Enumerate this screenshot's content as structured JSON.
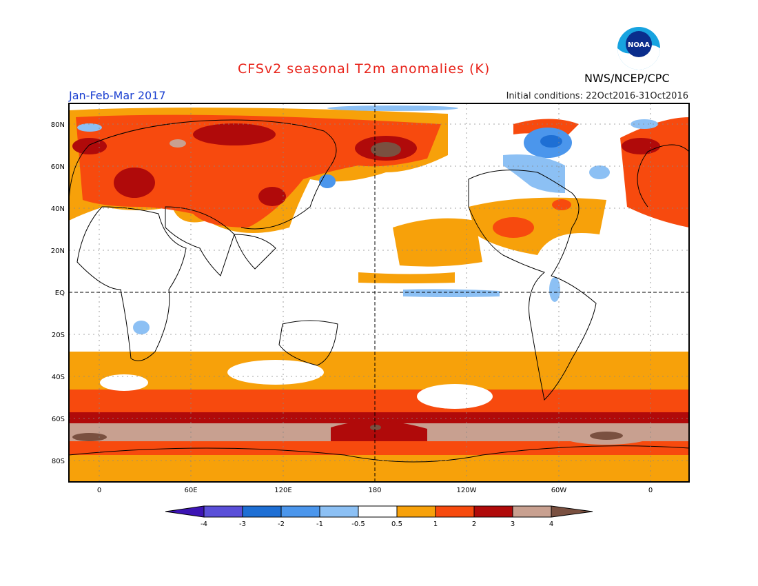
{
  "header": {
    "title": "CFSv2 seasonal T2m anomalies (K)",
    "agency": "NWS/NCEP/CPC",
    "season": "Jan-Feb-Mar 2017",
    "initial_conditions": "Initial conditions: 22Oct2016-31Oct2016",
    "logo_text": "NOAA"
  },
  "map": {
    "lat_labels": [
      "80N",
      "60N",
      "40N",
      "20N",
      "EQ",
      "20S",
      "40S",
      "60S",
      "80S"
    ],
    "lon_labels": [
      "0",
      "60E",
      "120E",
      "180",
      "120W",
      "60W",
      "0"
    ]
  },
  "colorbar": {
    "labels": [
      "-4",
      "-3",
      "-2",
      "-1",
      "-0.5",
      "0.5",
      "1",
      "2",
      "3",
      "4"
    ],
    "colors": [
      "#3c14b4",
      "#5a4fd8",
      "#1e6fd4",
      "#4b96ec",
      "#8cc0f4",
      "#ffffff",
      "#f7a10a",
      "#f74a0e",
      "#b00a0a",
      "#c8a090",
      "#7a5040"
    ]
  }
}
